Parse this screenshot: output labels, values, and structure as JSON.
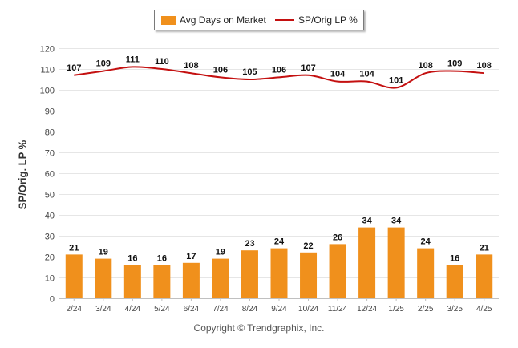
{
  "legend": {
    "bar_label": "Avg Days on Market",
    "line_label": "SP/Orig LP %"
  },
  "copyright": "Copyright © Trendgraphix, Inc.",
  "chart_data": {
    "type": "bar",
    "title": "",
    "xlabel": "",
    "ylabel": "SP/Orig. LP %",
    "ylim": [
      0,
      120
    ],
    "yticks": [
      0,
      10,
      20,
      30,
      40,
      50,
      60,
      70,
      80,
      90,
      100,
      110,
      120
    ],
    "grid": true,
    "legend_position": "top-center",
    "categories": [
      "2/24",
      "3/24",
      "4/24",
      "5/24",
      "6/24",
      "7/24",
      "8/24",
      "9/24",
      "10/24",
      "11/24",
      "12/24",
      "1/25",
      "2/25",
      "3/25",
      "4/25"
    ],
    "series": [
      {
        "name": "Avg Days on Market",
        "type": "bar",
        "color": "#f0901c",
        "values": [
          21,
          19,
          16,
          16,
          17,
          19,
          23,
          24,
          22,
          26,
          34,
          34,
          24,
          16,
          21
        ]
      },
      {
        "name": "SP/Orig LP %",
        "type": "line",
        "color": "#c41010",
        "values": [
          107,
          109,
          111,
          110,
          108,
          106,
          105,
          106,
          107,
          104,
          104,
          101,
          108,
          109,
          108
        ]
      }
    ]
  }
}
